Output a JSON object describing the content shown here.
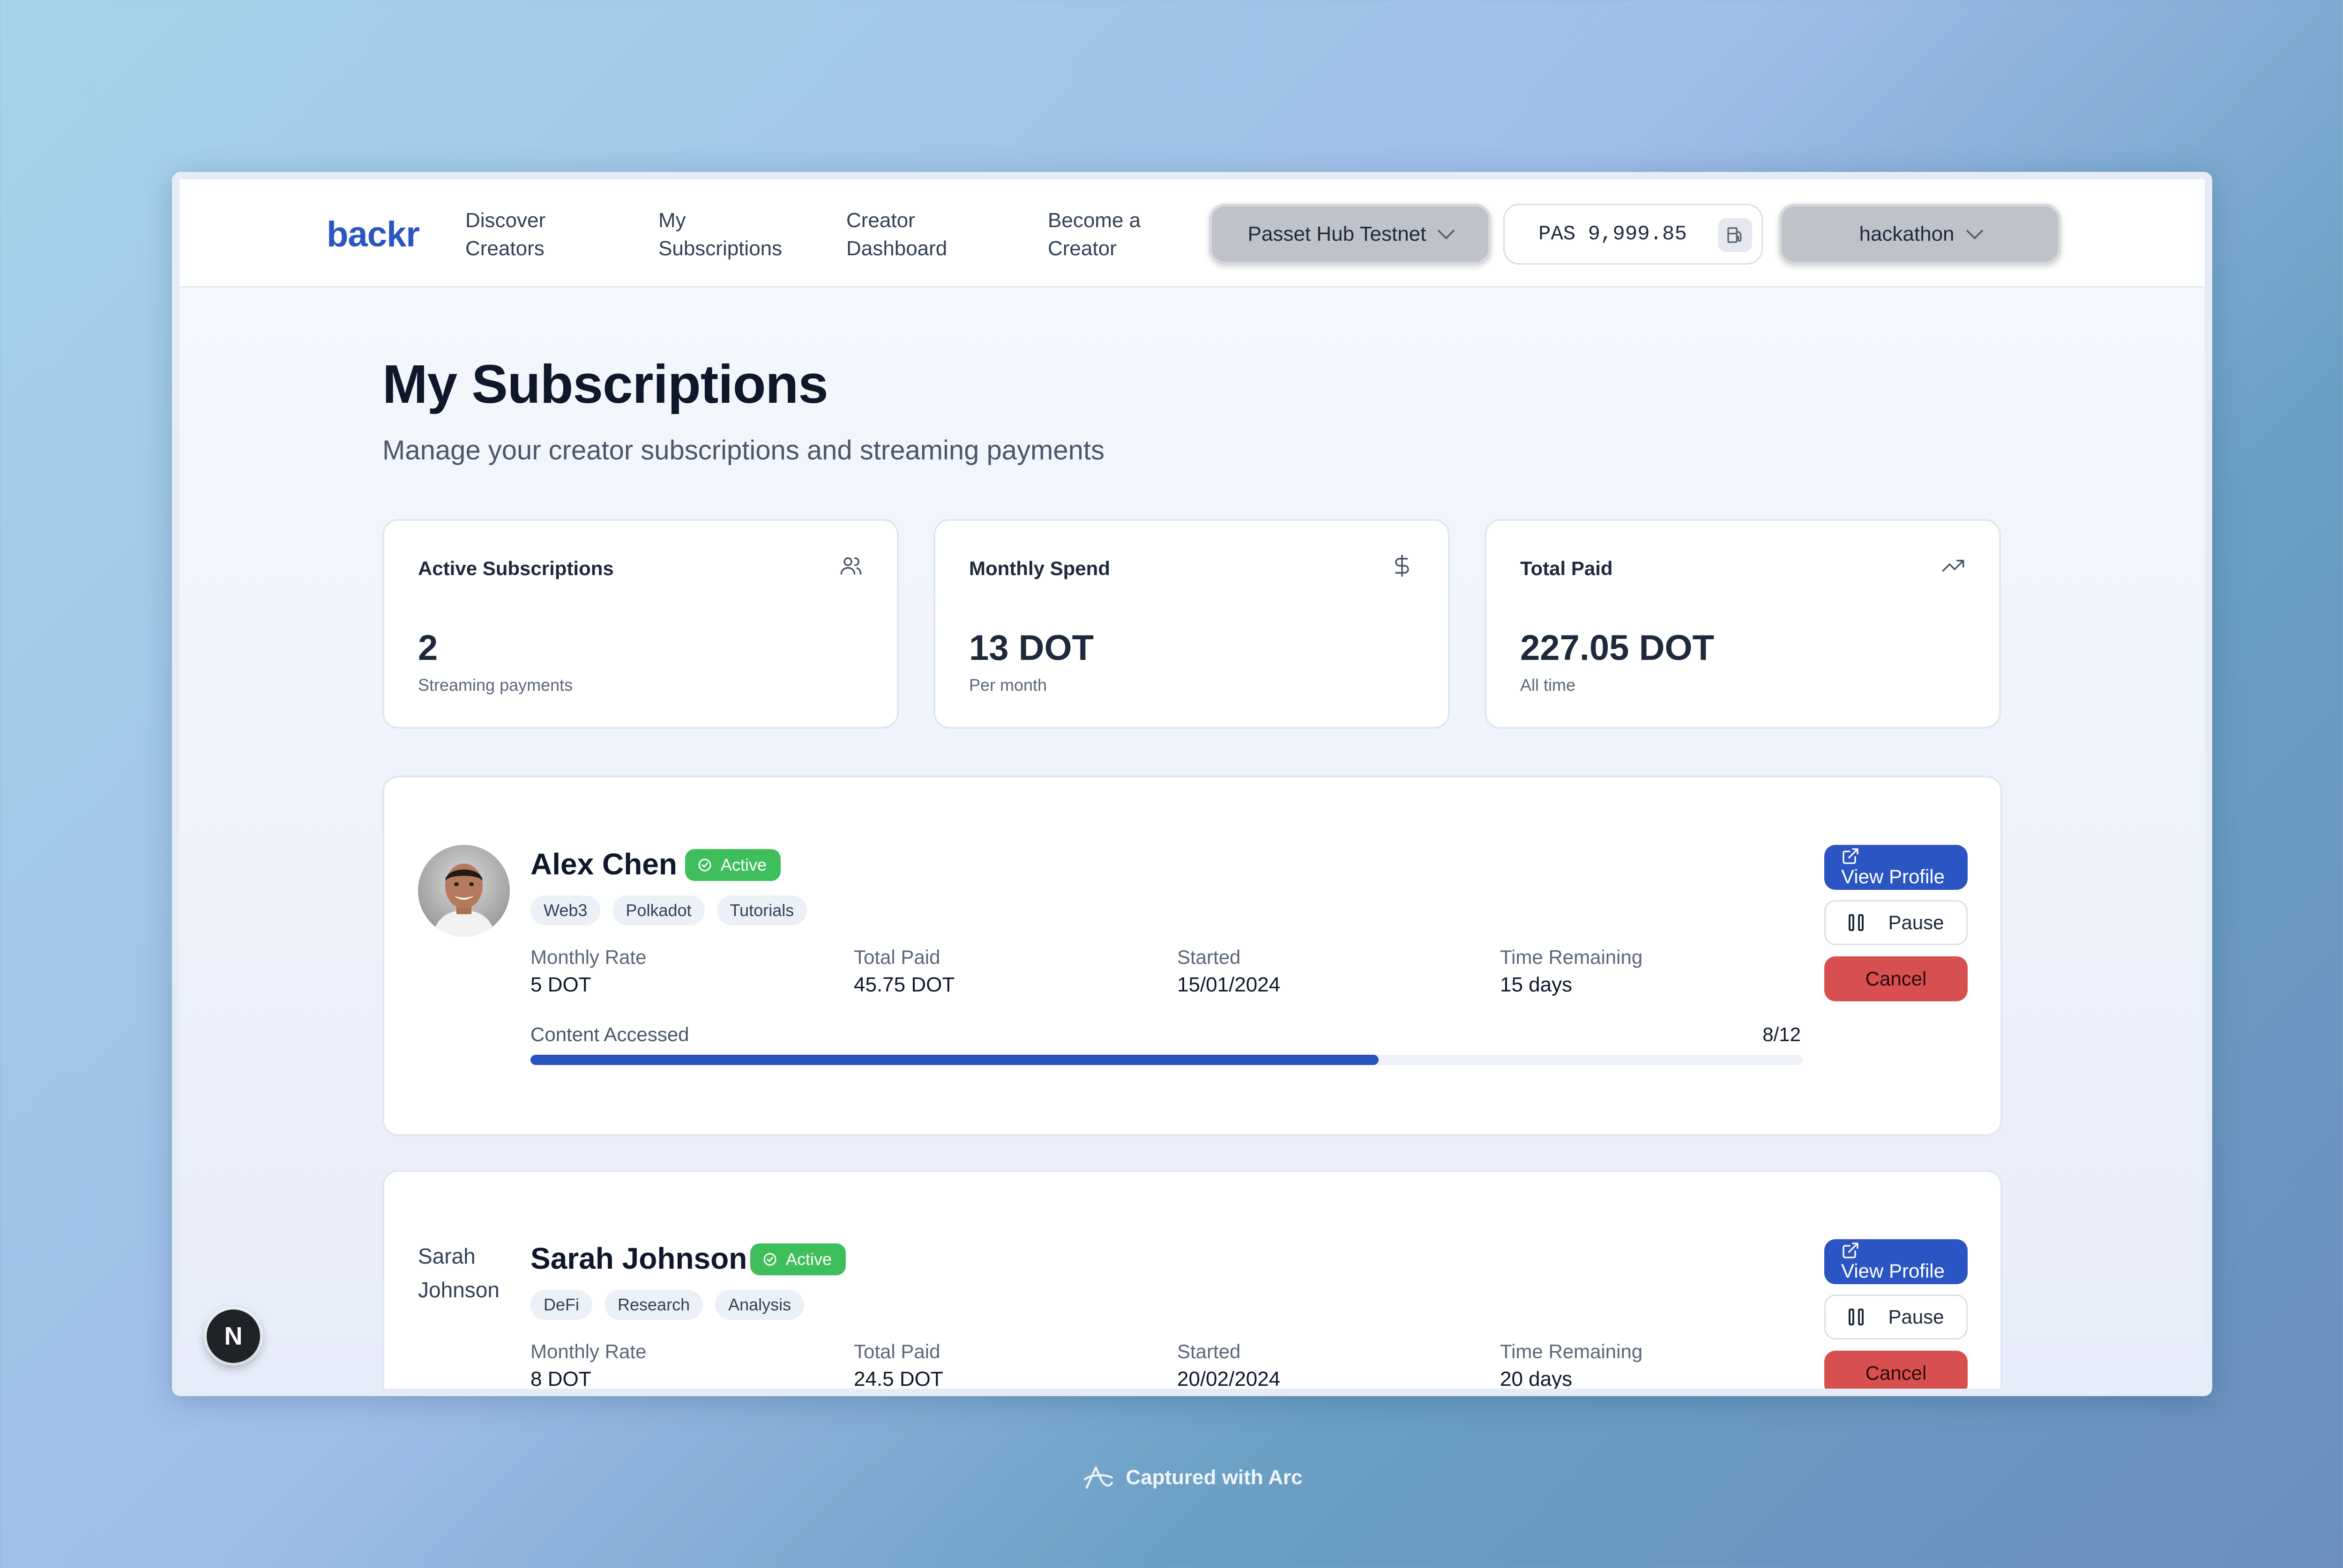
{
  "nav": {
    "logo": "backr",
    "links": [
      {
        "line1": "Discover",
        "line2": "Creators"
      },
      {
        "line1": "My",
        "line2": "Subscriptions"
      },
      {
        "line1": "Creator",
        "line2": "Dashboard"
      },
      {
        "line1": "Become a",
        "line2": "Creator"
      }
    ],
    "network": "Passet Hub Testnet",
    "balance": "PAS 9,999.85",
    "account": "hackathon"
  },
  "page": {
    "title": "My Subscriptions",
    "subtitle": "Manage your creator subscriptions and streaming payments"
  },
  "stats": [
    {
      "label": "Active Subscriptions",
      "value": "2",
      "sub": "Streaming payments",
      "icon": "users-icon"
    },
    {
      "label": "Monthly Spend",
      "value": "13 DOT",
      "sub": "Per month",
      "icon": "dollar-icon"
    },
    {
      "label": "Total Paid",
      "value": "227.05 DOT",
      "sub": "All time",
      "icon": "trending-up-icon"
    }
  ],
  "subscriptions": [
    {
      "name": "Alex Chen",
      "status": "Active",
      "tags": [
        "Web3",
        "Polkadot",
        "Tutorials"
      ],
      "meta": {
        "monthly_rate_label": "Monthly Rate",
        "monthly_rate": "5 DOT",
        "total_paid_label": "Total Paid",
        "total_paid": "45.75 DOT",
        "started_label": "Started",
        "started": "15/01/2024",
        "remaining_label": "Time Remaining",
        "remaining": "15 days"
      },
      "content_label": "Content Accessed",
      "content_count": "8/12",
      "content_progress": 0.6667
    },
    {
      "name": "Sarah Johnson",
      "avatar_alt": "Sarah Johnson",
      "status": "Active",
      "tags": [
        "DeFi",
        "Research",
        "Analysis"
      ],
      "meta": {
        "monthly_rate_label": "Monthly Rate",
        "monthly_rate": "8 DOT",
        "total_paid_label": "Total Paid",
        "total_paid": "24.5 DOT",
        "started_label": "Started",
        "started": "20/02/2024",
        "remaining_label": "Time Remaining",
        "remaining": "20 days"
      }
    }
  ],
  "actions": {
    "view": "View Profile",
    "pause": "Pause",
    "cancel": "Cancel"
  },
  "dev_badge": "N",
  "capture_text": "Captured with Arc",
  "colors": {
    "brand": "#2a55c2",
    "active": "#3fbf5c",
    "danger": "#d84f4f",
    "progress": "#2a52be"
  }
}
